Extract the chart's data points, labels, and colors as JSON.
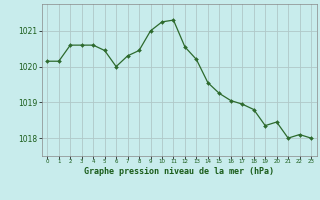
{
  "x": [
    0,
    1,
    2,
    3,
    4,
    5,
    6,
    7,
    8,
    9,
    10,
    11,
    12,
    13,
    14,
    15,
    16,
    17,
    18,
    19,
    20,
    21,
    22,
    23
  ],
  "y": [
    1020.15,
    1020.15,
    1020.6,
    1020.6,
    1020.6,
    1020.45,
    1020.0,
    1020.3,
    1020.45,
    1021.0,
    1021.25,
    1021.3,
    1020.55,
    1020.2,
    1019.55,
    1019.25,
    1019.05,
    1018.95,
    1018.8,
    1018.35,
    1018.45,
    1018.0,
    1018.1,
    1018.0
  ],
  "line_color": "#2d6a2d",
  "marker": "D",
  "marker_size": 2.0,
  "bg_color": "#c8ecec",
  "grid_color": "#b0c8c8",
  "tick_color": "#1a5c1a",
  "xlabel": "Graphe pression niveau de la mer (hPa)",
  "xlabel_color": "#1a5c1a",
  "ylim": [
    1017.5,
    1021.75
  ],
  "yticks": [
    1018,
    1019,
    1020,
    1021
  ],
  "xlim": [
    -0.5,
    23.5
  ],
  "xticks": [
    0,
    1,
    2,
    3,
    4,
    5,
    6,
    7,
    8,
    9,
    10,
    11,
    12,
    13,
    14,
    15,
    16,
    17,
    18,
    19,
    20,
    21,
    22,
    23
  ],
  "xtick_labels": [
    "0",
    "1",
    "2",
    "3",
    "4",
    "5",
    "6",
    "7",
    "8",
    "9",
    "10",
    "11",
    "12",
    "13",
    "14",
    "15",
    "16",
    "17",
    "18",
    "19",
    "20",
    "21",
    "22",
    "23"
  ]
}
